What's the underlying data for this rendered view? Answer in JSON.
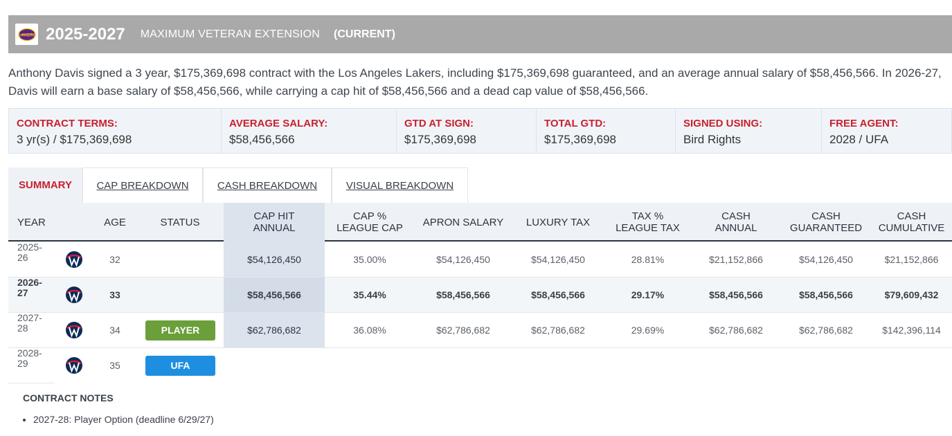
{
  "header": {
    "years": "2025-2027",
    "extension_type": "MAXIMUM VETERAN EXTENSION",
    "current": "(CURRENT)",
    "logo_text": "LAKERS"
  },
  "description": "Anthony Davis signed a 3 year, $175,369,698 contract with the Los Angeles Lakers, including $175,369,698 guaranteed, and an average annual salary of $58,456,566. In 2026-27, Davis will earn a base salary of $58,456,566, while carrying a cap hit of $58,456,566 and a dead cap value of $58,456,566.",
  "terms": [
    {
      "label": "Contract Terms:",
      "value": "3 yr(s) / $175,369,698"
    },
    {
      "label": "Average Salary:",
      "value": "$58,456,566"
    },
    {
      "label": "GTD at Sign:",
      "value": "$175,369,698"
    },
    {
      "label": "Total GTD:",
      "value": "$175,369,698"
    },
    {
      "label": "Signed Using:",
      "value": "Bird Rights"
    },
    {
      "label": "Free Agent:",
      "value": "2028 / UFA"
    }
  ],
  "tabs": [
    "SUMMARY",
    "CAP BREAKDOWN",
    "CASH BREAKDOWN",
    "VISUAL BREAKDOWN"
  ],
  "columns": {
    "year": "YEAR",
    "age": "AGE",
    "status": "STATUS",
    "cap_hit_1": "CAP HIT",
    "cap_hit_2": "ANNUAL",
    "cap_pct_1": "CAP %",
    "cap_pct_2": "LEAGUE CAP",
    "apron": "APRON SALARY",
    "lux": "LUXURY TAX",
    "tax_pct_1": "TAX %",
    "tax_pct_2": "LEAGUE TAX",
    "cash_annual_1": "CASH",
    "cash_annual_2": "ANNUAL",
    "cash_gtd_1": "CASH",
    "cash_gtd_2": "GUARANTEED",
    "cash_cum_1": "CASH",
    "cash_cum_2": "CUMULATIVE"
  },
  "rows": [
    {
      "year_a": "2025-",
      "year_b": "26",
      "age": "32",
      "status": "",
      "cap_hit": "$54,126,450",
      "cap_pct": "35.00%",
      "apron": "$54,126,450",
      "lux": "$54,126,450",
      "tax_pct": "28.81%",
      "cash_annual": "$21,152,866",
      "cash_gtd": "$54,126,450",
      "cash_cum": "$21,152,866"
    },
    {
      "year_a": "2026-",
      "year_b": "27",
      "age": "33",
      "status": "",
      "cap_hit": "$58,456,566",
      "cap_pct": "35.44%",
      "apron": "$58,456,566",
      "lux": "$58,456,566",
      "tax_pct": "29.17%",
      "cash_annual": "$58,456,566",
      "cash_gtd": "$58,456,566",
      "cash_cum": "$79,609,432"
    },
    {
      "year_a": "2027-",
      "year_b": "28",
      "age": "34",
      "status": "PLAYER",
      "cap_hit": "$62,786,682",
      "cap_pct": "36.08%",
      "apron": "$62,786,682",
      "lux": "$62,786,682",
      "tax_pct": "29.69%",
      "cash_annual": "$62,786,682",
      "cash_gtd": "$62,786,682",
      "cash_cum": "$142,396,114"
    },
    {
      "year_a": "2028-",
      "year_b": "29",
      "age": "35",
      "status": "UFA"
    }
  ],
  "status_colors": {
    "player": "#6a9f3a",
    "ufa": "#1e8fe0"
  },
  "notes": {
    "title": "CONTRACT NOTES",
    "items": [
      "2027-28: Player Option (deadline 6/29/27)"
    ]
  }
}
